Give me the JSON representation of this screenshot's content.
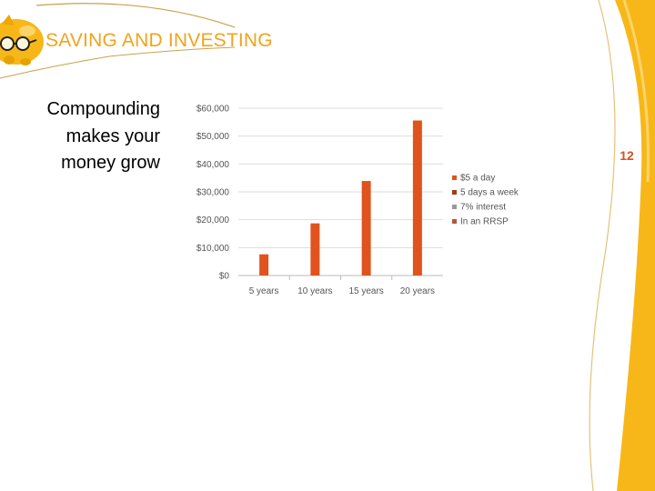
{
  "slide": {
    "title": "SAVING AND INVESTING",
    "side_text": "Compounding makes your money grow",
    "page_number": "12"
  },
  "colors": {
    "title": "#f2a31b",
    "bar": "#e0531d",
    "legend": [
      "#e0531d",
      "#a23a12",
      "#999999",
      "#b5573a"
    ],
    "decor_gold": "#f7b718",
    "decor_line": "#c9a14a",
    "page_number": "#d94f1e"
  },
  "icons": [
    "piggy-bank-icon"
  ],
  "chart_data": {
    "type": "bar",
    "categories": [
      "5 years",
      "10 years",
      "15 years",
      "20 years"
    ],
    "values": [
      7600,
      18700,
      33900,
      55600
    ],
    "ylim": [
      0,
      60000
    ],
    "yticks": [
      "$0",
      "$10,000",
      "$20,000",
      "$30,000",
      "$40,000",
      "$50,000",
      "$60,000"
    ],
    "legend_position": "right",
    "legend": [
      "$5 a day",
      "5 days a week",
      "7% interest",
      "In an RRSP"
    ],
    "grid": true
  }
}
